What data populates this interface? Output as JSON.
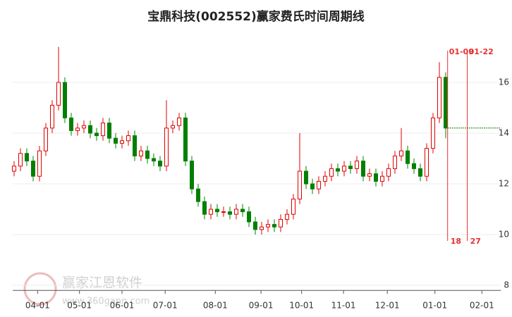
{
  "chart_data": {
    "type": "candlestick",
    "title": "宝鼎科技(002552)赢家费氏时间周期线",
    "watermark": {
      "name": "赢家江恩软件",
      "url": "www.360gann.com"
    },
    "x": [
      0,
      1,
      2,
      3,
      4,
      5,
      6,
      7,
      8,
      9,
      10,
      11,
      12,
      13,
      14,
      15,
      16,
      17,
      18,
      19,
      20,
      21,
      22,
      23,
      24,
      25,
      26,
      27,
      28,
      29,
      30,
      31,
      32,
      33,
      34,
      35,
      36,
      37,
      38,
      39,
      40,
      41,
      42,
      43,
      44,
      45,
      46,
      47,
      48,
      49,
      50,
      51,
      52,
      53,
      54,
      55,
      56,
      57,
      58,
      59,
      60,
      61,
      62,
      63,
      64,
      65,
      66,
      67,
      68
    ],
    "open": [
      12.5,
      12.7,
      13.2,
      12.9,
      12.3,
      13.3,
      14.2,
      15.1,
      16.0,
      14.6,
      14.1,
      14.2,
      14.3,
      14.0,
      13.9,
      14.4,
      13.8,
      13.6,
      13.7,
      13.9,
      13.1,
      13.3,
      13.0,
      12.9,
      12.7,
      14.2,
      14.3,
      14.6,
      12.9,
      11.8,
      11.3,
      10.8,
      11.0,
      10.9,
      10.9,
      10.8,
      11.0,
      10.9,
      10.5,
      10.2,
      10.3,
      10.4,
      10.3,
      10.6,
      10.8,
      11.4,
      12.5,
      12.0,
      11.8,
      12.1,
      12.3,
      12.6,
      12.5,
      12.7,
      12.6,
      12.9,
      12.3,
      12.4,
      12.1,
      12.3,
      12.6,
      13.1,
      13.3,
      12.8,
      12.6,
      12.3,
      13.4,
      14.6,
      16.2
    ],
    "close": [
      12.7,
      13.2,
      12.9,
      12.3,
      13.3,
      14.2,
      15.1,
      16.0,
      14.6,
      14.1,
      14.2,
      14.3,
      14.0,
      13.9,
      14.4,
      13.8,
      13.6,
      13.7,
      13.9,
      13.1,
      13.3,
      13.0,
      12.9,
      12.7,
      14.2,
      14.3,
      14.6,
      12.9,
      11.8,
      11.3,
      10.8,
      11.0,
      10.9,
      10.9,
      10.8,
      11.0,
      10.9,
      10.5,
      10.2,
      10.3,
      10.4,
      10.3,
      10.6,
      10.8,
      11.4,
      12.5,
      12.0,
      11.8,
      12.1,
      12.3,
      12.6,
      12.5,
      12.7,
      12.6,
      12.9,
      12.3,
      12.4,
      12.1,
      12.3,
      12.6,
      13.1,
      13.3,
      12.8,
      12.6,
      12.3,
      13.4,
      14.6,
      16.2,
      14.2
    ],
    "high": [
      12.9,
      13.4,
      13.4,
      13.1,
      13.5,
      14.4,
      15.3,
      17.4,
      16.2,
      14.8,
      14.4,
      14.5,
      14.5,
      14.2,
      14.6,
      14.6,
      14.0,
      13.9,
      14.1,
      14.1,
      13.5,
      13.5,
      13.2,
      13.1,
      15.3,
      14.5,
      14.8,
      14.8,
      13.1,
      12.0,
      11.5,
      11.2,
      11.2,
      11.1,
      11.1,
      11.2,
      11.2,
      11.1,
      10.7,
      10.5,
      10.6,
      10.6,
      10.8,
      11.0,
      11.6,
      14.0,
      12.7,
      12.2,
      12.3,
      12.5,
      12.8,
      12.8,
      12.9,
      12.9,
      13.1,
      13.1,
      12.6,
      12.6,
      12.5,
      12.8,
      13.3,
      14.2,
      13.5,
      13.0,
      12.8,
      13.6,
      14.8,
      16.8,
      16.4
    ],
    "low": [
      12.3,
      12.5,
      12.7,
      12.1,
      12.1,
      13.1,
      14.0,
      14.9,
      14.4,
      13.9,
      13.9,
      14.0,
      13.8,
      13.7,
      13.7,
      13.6,
      13.4,
      13.4,
      13.5,
      12.9,
      12.9,
      12.8,
      12.7,
      12.5,
      12.5,
      14.0,
      14.1,
      12.7,
      11.6,
      11.1,
      10.6,
      10.6,
      10.7,
      10.7,
      10.6,
      10.6,
      10.7,
      10.3,
      10.0,
      10.0,
      10.1,
      10.1,
      10.1,
      10.4,
      10.6,
      11.2,
      11.8,
      11.6,
      11.6,
      11.9,
      12.1,
      12.3,
      12.3,
      12.4,
      12.4,
      12.1,
      12.1,
      11.9,
      11.9,
      12.1,
      12.4,
      12.9,
      12.6,
      12.4,
      12.1,
      12.1,
      13.2,
      14.4,
      13.8
    ],
    "up_color": "#e00000",
    "down_color": "#008000",
    "events": [
      {
        "x": 68.3,
        "date": "01-09",
        "days": 18
      },
      {
        "x": 71.4,
        "date": "01-22",
        "days": 27
      }
    ],
    "event_color": "#e83030",
    "xlim": [
      -0.2,
      76.7
    ],
    "xticks": [
      {
        "value": 3.7,
        "label": "04-01"
      },
      {
        "value": 10.3,
        "label": "05-01"
      },
      {
        "value": 17,
        "label": "06-01"
      },
      {
        "value": 23.8,
        "label": "07-01"
      },
      {
        "value": 31.7,
        "label": "08-01"
      },
      {
        "value": 38.9,
        "label": "09-01"
      },
      {
        "value": 45.3,
        "label": "10-01"
      },
      {
        "value": 51.9,
        "label": "11-01"
      },
      {
        "value": 58.8,
        "label": "12-01"
      },
      {
        "value": 66.3,
        "label": "01-01"
      },
      {
        "value": 73.7,
        "label": "02-01"
      }
    ],
    "ylim": [
      7.8,
      17.9
    ],
    "yticks": [
      8,
      10,
      12,
      14,
      16
    ],
    "grid": true
  }
}
